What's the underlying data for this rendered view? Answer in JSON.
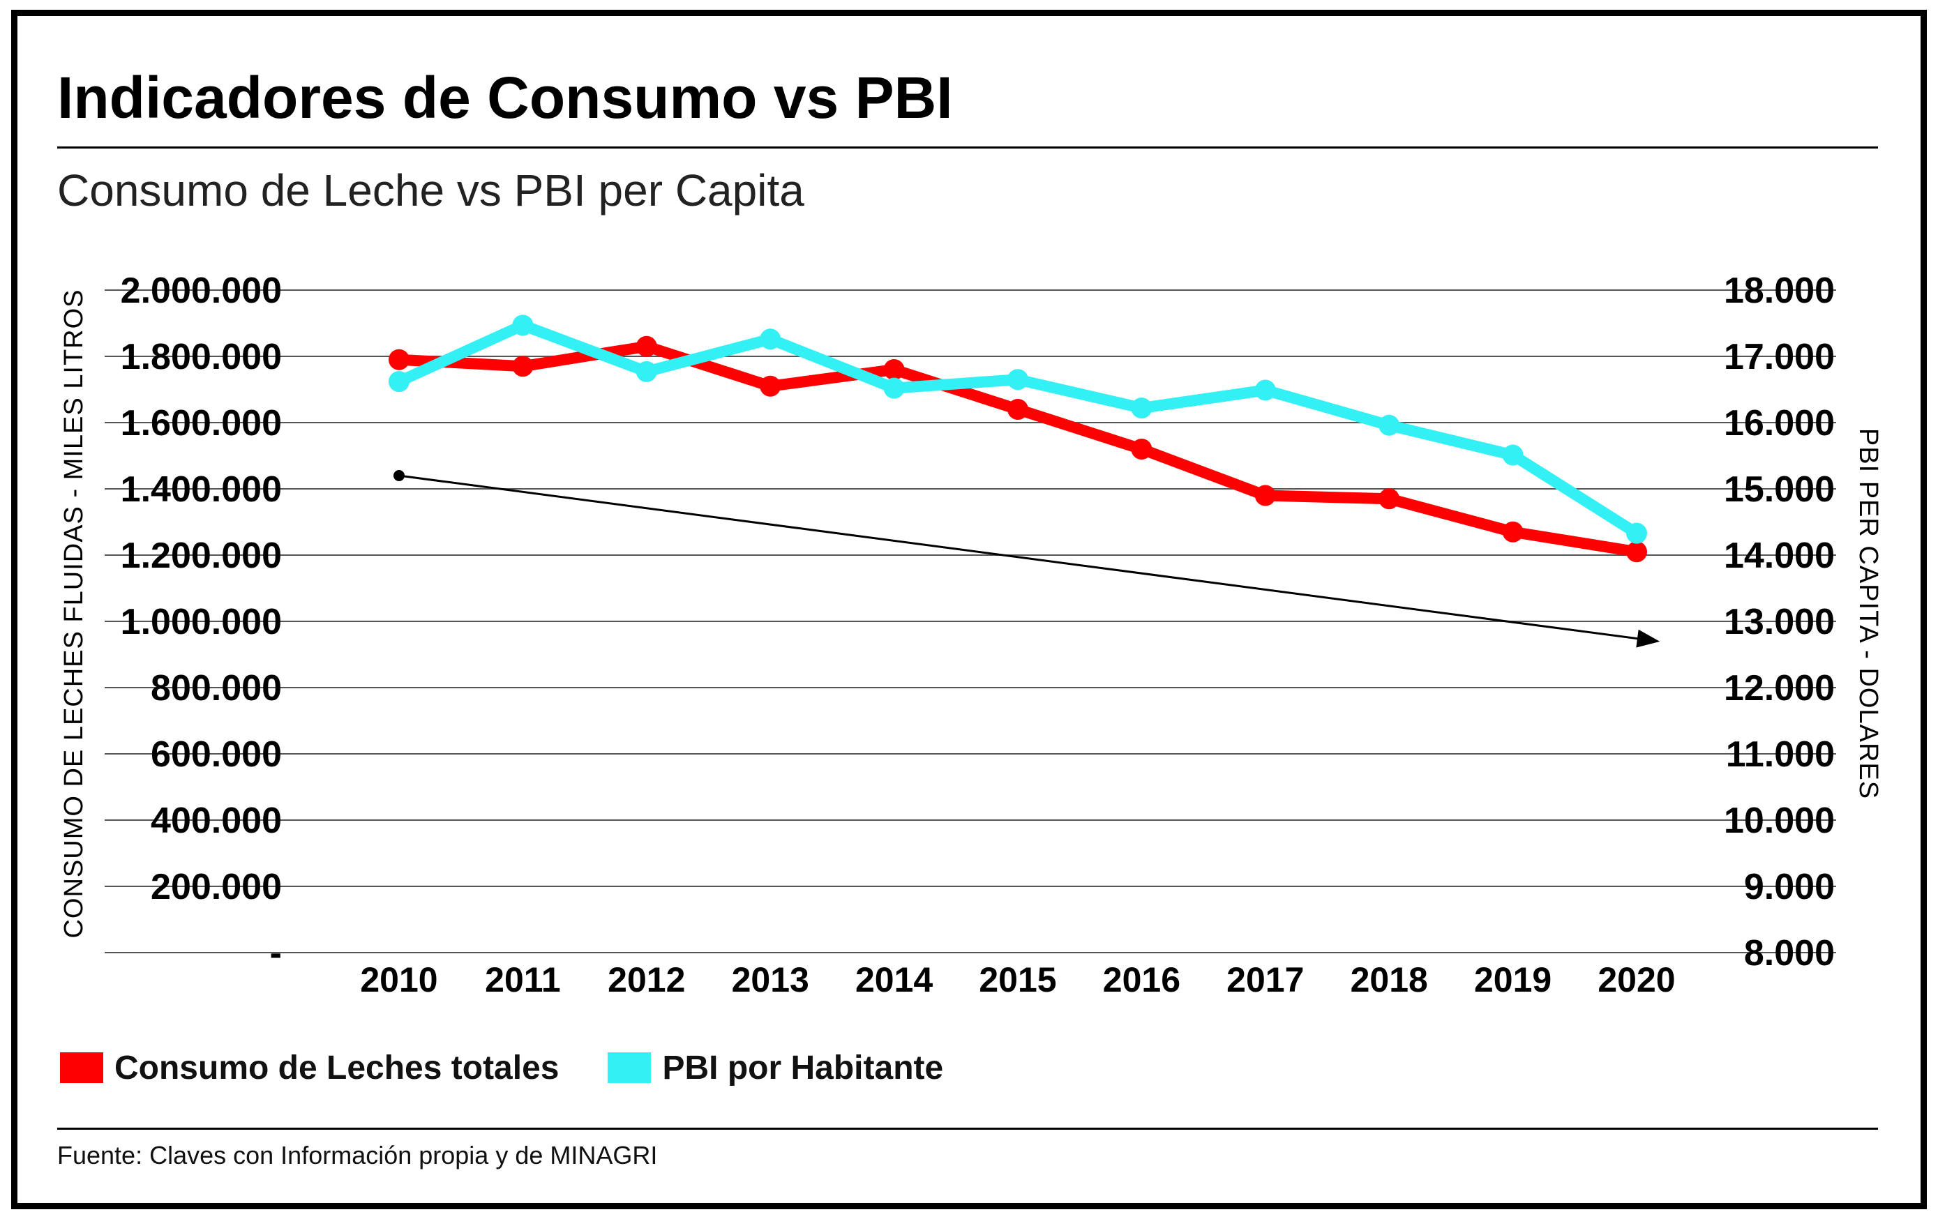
{
  "header": {
    "title": "Indicadores de Consumo vs PBI",
    "subtitle": "Consumo de Leche vs PBI per Capita"
  },
  "legend": {
    "items": [
      {
        "label": "Consumo de Leches totales",
        "color": "#ff0000"
      },
      {
        "label": "PBI por Habitante",
        "color": "#33f0f5"
      }
    ]
  },
  "footer": {
    "source": "Fuente: Claves con Información propia y de MINAGRI"
  },
  "chart_data": {
    "type": "line",
    "title": "Indicadores de Consumo vs PBI",
    "subtitle": "Consumo de Leche vs PBI per Capita",
    "x": [
      "2010",
      "2011",
      "2012",
      "2013",
      "2014",
      "2015",
      "2016",
      "2017",
      "2018",
      "2019",
      "2020"
    ],
    "ylabel_left": "CONSUMO DE LECHES FLUIDAS  - MILES LITROS",
    "ylabel_right": "PBI PER CAPITA - DOLARES",
    "y_left_range": [
      0,
      2000000
    ],
    "y_right_range": [
      8000,
      18000
    ],
    "y_left_ticks": [
      "2.000.000",
      "1.800.000",
      "1.600.000",
      "1.400.000",
      "1.200.000",
      "1.000.000",
      "800.000",
      "600.000",
      "400.000",
      "200.000",
      "-"
    ],
    "y_right_ticks": [
      "18.000",
      "17.000",
      "16.000",
      "15.000",
      "14.000",
      "13.000",
      "12.000",
      "11.000",
      "10.000",
      "9.000",
      "8.000"
    ],
    "grid": "horizontal",
    "series": [
      {
        "name": "Consumo de Leches totales",
        "axis": "left",
        "color": "#ff0000",
        "values": [
          1790000,
          1770000,
          1830000,
          1710000,
          1760000,
          1640000,
          1520000,
          1380000,
          1370000,
          1270000,
          1210000
        ]
      },
      {
        "name": "PBI por Habitante",
        "axis": "right",
        "color": "#33f0f5",
        "values": [
          16620,
          17470,
          16770,
          17260,
          16520,
          16650,
          16220,
          16490,
          15960,
          15510,
          14330
        ]
      }
    ],
    "trend_arrow": {
      "from": {
        "x": "2010",
        "y_left": 1440000
      },
      "to": {
        "x": "2020",
        "y_left": 940000
      }
    }
  }
}
